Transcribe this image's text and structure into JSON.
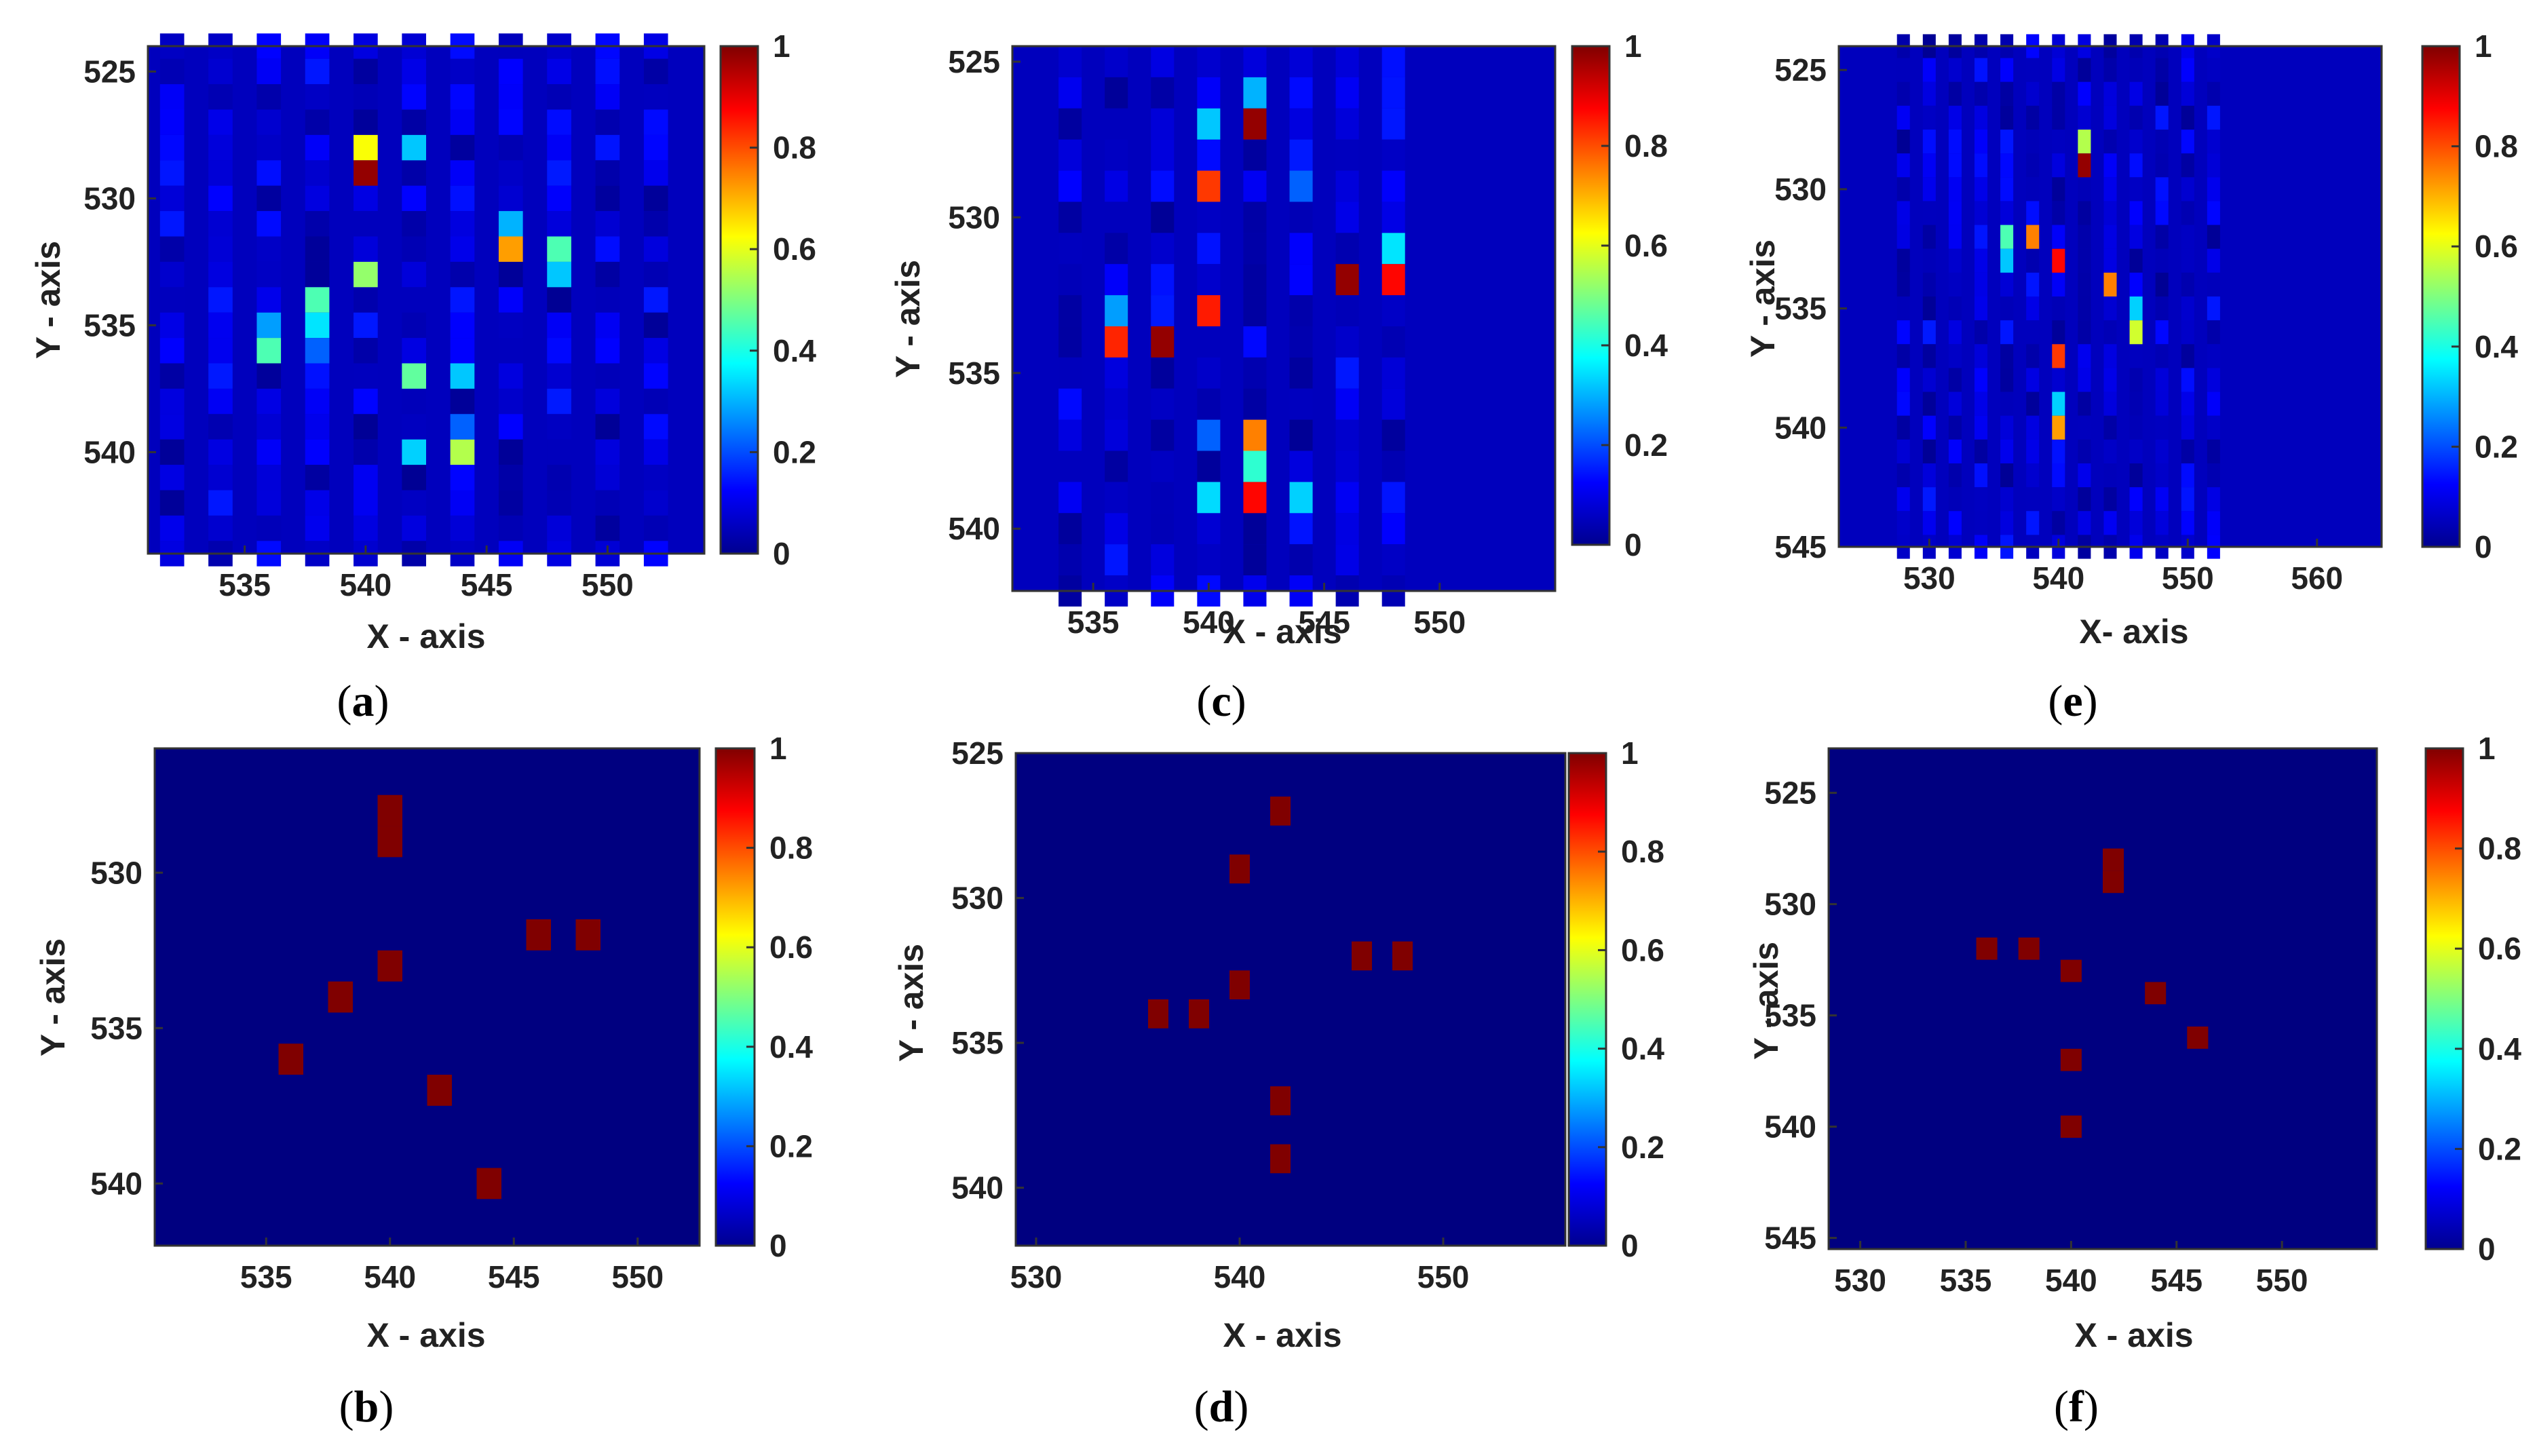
{
  "figure": {
    "colormap": "jet"
  },
  "colorbar": {
    "ticks": [
      "0",
      "0.2",
      "0.4",
      "0.6",
      "0.8",
      "1"
    ]
  },
  "chart_data": [
    {
      "id": "a",
      "type": "heatmap",
      "caption": "a",
      "xlabel": "X - axis",
      "ylabel": "Y - axis",
      "xlim": [
        531,
        554
      ],
      "ylim": [
        524,
        544
      ],
      "y_reversed": true,
      "xticks": [
        535,
        540,
        545,
        550
      ],
      "yticks": [
        525,
        530,
        535,
        540
      ],
      "background": 0.06,
      "noise_columns": [
        532,
        534,
        536,
        538,
        540,
        542,
        544,
        546,
        548,
        550,
        552
      ],
      "cells": [
        {
          "x": 540,
          "y": 528,
          "v": 0.62
        },
        {
          "x": 540,
          "y": 529,
          "v": 0.98
        },
        {
          "x": 542,
          "y": 528,
          "v": 0.32
        },
        {
          "x": 540,
          "y": 533,
          "v": 0.52
        },
        {
          "x": 538,
          "y": 534,
          "v": 0.45
        },
        {
          "x": 538,
          "y": 535,
          "v": 0.35
        },
        {
          "x": 538,
          "y": 536,
          "v": 0.22
        },
        {
          "x": 536,
          "y": 535,
          "v": 0.28
        },
        {
          "x": 536,
          "y": 536,
          "v": 0.45
        },
        {
          "x": 542,
          "y": 537,
          "v": 0.47
        },
        {
          "x": 544,
          "y": 537,
          "v": 0.32
        },
        {
          "x": 542,
          "y": 540,
          "v": 0.33
        },
        {
          "x": 544,
          "y": 540,
          "v": 0.55
        },
        {
          "x": 544,
          "y": 539,
          "v": 0.22
        },
        {
          "x": 546,
          "y": 531,
          "v": 0.3
        },
        {
          "x": 546,
          "y": 532,
          "v": 0.72
        },
        {
          "x": 548,
          "y": 532,
          "v": 0.45
        },
        {
          "x": 548,
          "y": 533,
          "v": 0.32
        }
      ]
    },
    {
      "id": "b",
      "type": "heatmap",
      "caption": "b",
      "xlabel": "X - axis",
      "ylabel": "Y - axis",
      "xlim": [
        530.5,
        552.5
      ],
      "ylim": [
        526,
        542
      ],
      "y_reversed": true,
      "xticks": [
        535,
        540,
        545,
        550
      ],
      "yticks": [
        530,
        535,
        540
      ],
      "background": 0.0,
      "cells": [
        {
          "x": 540,
          "y": 528,
          "v": 1
        },
        {
          "x": 540,
          "y": 529,
          "v": 1
        },
        {
          "x": 538,
          "y": 534,
          "v": 1
        },
        {
          "x": 540,
          "y": 533,
          "v": 1
        },
        {
          "x": 536,
          "y": 536,
          "v": 1
        },
        {
          "x": 542,
          "y": 537,
          "v": 1
        },
        {
          "x": 544,
          "y": 540,
          "v": 1
        },
        {
          "x": 546,
          "y": 532,
          "v": 1
        },
        {
          "x": 548,
          "y": 532,
          "v": 1
        }
      ]
    },
    {
      "id": "c",
      "type": "heatmap",
      "caption": "c",
      "xlabel": "X - axis",
      "ylabel": "Y - axis",
      "xlim": [
        531.5,
        555
      ],
      "ylim": [
        524.5,
        542
      ],
      "y_reversed": true,
      "xticks": [
        535,
        540,
        545,
        550
      ],
      "yticks": [
        525,
        530,
        535,
        540
      ],
      "background": 0.06,
      "noise_columns": [
        534,
        536,
        538,
        540,
        542,
        544,
        546,
        548
      ],
      "cells": [
        {
          "x": 542,
          "y": 526,
          "v": 0.3
        },
        {
          "x": 542,
          "y": 527,
          "v": 0.98
        },
        {
          "x": 540,
          "y": 527,
          "v": 0.32
        },
        {
          "x": 540,
          "y": 529,
          "v": 0.82
        },
        {
          "x": 544,
          "y": 529,
          "v": 0.22
        },
        {
          "x": 540,
          "y": 533,
          "v": 0.85
        },
        {
          "x": 536,
          "y": 533,
          "v": 0.28
        },
        {
          "x": 536,
          "y": 534,
          "v": 0.84
        },
        {
          "x": 538,
          "y": 534,
          "v": 0.98
        },
        {
          "x": 546,
          "y": 532,
          "v": 0.98
        },
        {
          "x": 548,
          "y": 531,
          "v": 0.35
        },
        {
          "x": 548,
          "y": 532,
          "v": 0.87
        },
        {
          "x": 542,
          "y": 537,
          "v": 0.75
        },
        {
          "x": 542,
          "y": 538,
          "v": 0.42
        },
        {
          "x": 542,
          "y": 539,
          "v": 0.87
        },
        {
          "x": 540,
          "y": 539,
          "v": 0.34
        },
        {
          "x": 544,
          "y": 539,
          "v": 0.33
        },
        {
          "x": 540,
          "y": 537,
          "v": 0.22
        }
      ]
    },
    {
      "id": "d",
      "type": "heatmap",
      "caption": "d",
      "xlabel": "X - axis",
      "ylabel": "Y - axis",
      "xlim": [
        529,
        556
      ],
      "ylim": [
        525,
        542
      ],
      "y_reversed": true,
      "xticks": [
        530,
        540,
        550
      ],
      "yticks": [
        525,
        530,
        535,
        540
      ],
      "background": 0.0,
      "cells": [
        {
          "x": 542,
          "y": 527,
          "v": 1
        },
        {
          "x": 540,
          "y": 529,
          "v": 1
        },
        {
          "x": 540,
          "y": 533,
          "v": 1
        },
        {
          "x": 536,
          "y": 534,
          "v": 1
        },
        {
          "x": 538,
          "y": 534,
          "v": 1
        },
        {
          "x": 546,
          "y": 532,
          "v": 1
        },
        {
          "x": 548,
          "y": 532,
          "v": 1
        },
        {
          "x": 542,
          "y": 537,
          "v": 1
        },
        {
          "x": 542,
          "y": 539,
          "v": 1
        }
      ]
    },
    {
      "id": "e",
      "type": "heatmap",
      "caption": "e",
      "xlabel": "X- axis",
      "ylabel": "Y - axis",
      "xlim": [
        523,
        565
      ],
      "ylim": [
        524,
        545
      ],
      "y_reversed": true,
      "xticks": [
        530,
        540,
        550,
        560
      ],
      "yticks": [
        525,
        530,
        535,
        540,
        545
      ],
      "background": 0.06,
      "noise_columns": [
        528,
        530,
        532,
        534,
        536,
        538,
        540,
        542,
        544,
        546,
        548,
        550,
        552
      ],
      "cells": [
        {
          "x": 542,
          "y": 528,
          "v": 0.55
        },
        {
          "x": 542,
          "y": 529,
          "v": 0.98
        },
        {
          "x": 536,
          "y": 532,
          "v": 0.45
        },
        {
          "x": 536,
          "y": 533,
          "v": 0.32
        },
        {
          "x": 538,
          "y": 532,
          "v": 0.75
        },
        {
          "x": 540,
          "y": 533,
          "v": 0.87
        },
        {
          "x": 544,
          "y": 534,
          "v": 0.75
        },
        {
          "x": 546,
          "y": 535,
          "v": 0.33
        },
        {
          "x": 546,
          "y": 536,
          "v": 0.58
        },
        {
          "x": 540,
          "y": 537,
          "v": 0.82
        },
        {
          "x": 540,
          "y": 539,
          "v": 0.33
        },
        {
          "x": 540,
          "y": 540,
          "v": 0.72
        }
      ]
    },
    {
      "id": "f",
      "type": "heatmap",
      "caption": "f",
      "xlabel": "X - axis",
      "ylabel": "Y - axis",
      "xlim": [
        528.5,
        554.5
      ],
      "ylim": [
        523,
        545.5
      ],
      "y_reversed": true,
      "xticks": [
        530,
        535,
        540,
        545,
        550
      ],
      "yticks": [
        525,
        530,
        535,
        540,
        545
      ],
      "background": 0.0,
      "cells": [
        {
          "x": 542,
          "y": 528,
          "v": 1
        },
        {
          "x": 542,
          "y": 529,
          "v": 1
        },
        {
          "x": 536,
          "y": 532,
          "v": 1
        },
        {
          "x": 538,
          "y": 532,
          "v": 1
        },
        {
          "x": 540,
          "y": 533,
          "v": 1
        },
        {
          "x": 544,
          "y": 534,
          "v": 1
        },
        {
          "x": 546,
          "y": 536,
          "v": 1
        },
        {
          "x": 540,
          "y": 537,
          "v": 1
        },
        {
          "x": 540,
          "y": 540,
          "v": 1
        }
      ]
    }
  ]
}
